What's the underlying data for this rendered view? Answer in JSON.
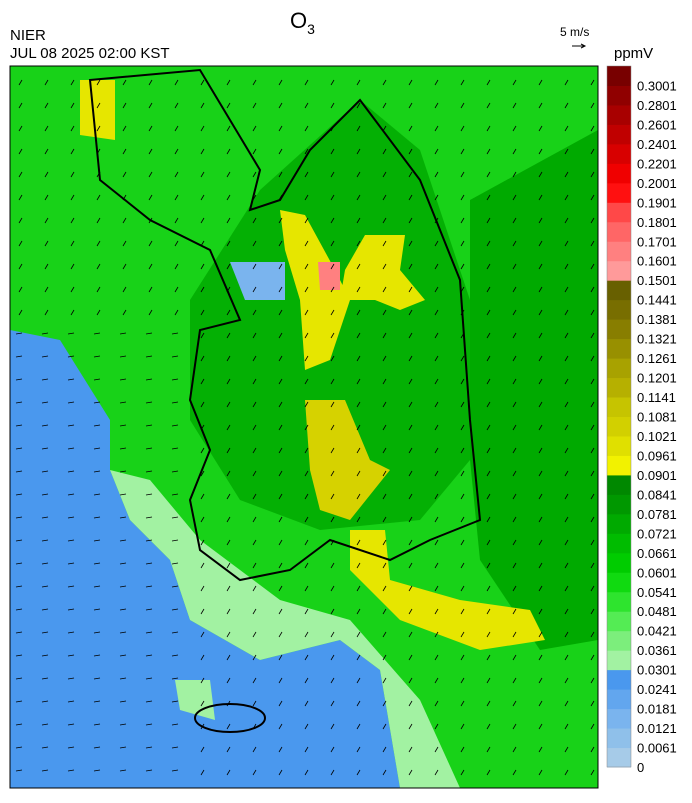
{
  "header": {
    "title": "O",
    "title_sub": "3",
    "agency": "NIER",
    "timestamp": "JUL 08 2025 02:00 KST",
    "wind_scale": "5 m/s"
  },
  "legend": {
    "unit": "ppmV",
    "levels": [
      "0",
      "0.0061",
      "0.0121",
      "0.0181",
      "0.0241",
      "0.0301",
      "0.0361",
      "0.0421",
      "0.0481",
      "0.0541",
      "0.0601",
      "0.0661",
      "0.0721",
      "0.0781",
      "0.0841",
      "0.0901",
      "0.0961",
      "0.1021",
      "0.1081",
      "0.1141",
      "0.1201",
      "0.1261",
      "0.1321",
      "0.1381",
      "0.1441",
      "0.1501",
      "0.1601",
      "0.1701",
      "0.1801",
      "0.1901",
      "0.2001",
      "0.2201",
      "0.2401",
      "0.2601",
      "0.2801",
      "0.3001"
    ],
    "colors": [
      "#a6cbe8",
      "#8fc0ea",
      "#7ab4ee",
      "#62a6ee",
      "#4a98ee",
      "#a2f2a2",
      "#7cee7c",
      "#54ec54",
      "#2ee42e",
      "#10da10",
      "#00cc00",
      "#00bc00",
      "#00aa00",
      "#009800",
      "#008800",
      "#f2f200",
      "#e0e000",
      "#d2d000",
      "#c6c400",
      "#b6b000",
      "#a8a200",
      "#989000",
      "#887e00",
      "#786e00",
      "#686000",
      "#ff9a9a",
      "#ff8080",
      "#ff6666",
      "#ff4848",
      "#ff1010",
      "#f00000",
      "#d80000",
      "#c00000",
      "#a80000",
      "#900000",
      "#780000"
    ]
  }
}
